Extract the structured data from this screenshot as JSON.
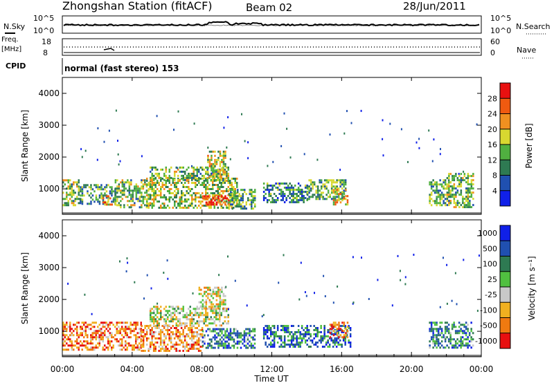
{
  "header": {
    "station": "Zhongshan Station (fitACF)",
    "beam": "Beam 02",
    "date": "28/Jun/2011"
  },
  "noise_panel": {
    "left_label": "N.Sky",
    "right_label": "N.Search",
    "y_tick_top": "10^5",
    "y_tick_bottom": "10^0"
  },
  "freq_panel": {
    "left_label_1": "Freq.",
    "left_label_2": "[MHz]",
    "right_label": "Nave",
    "left_tick_top": "18",
    "left_tick_bottom": "8",
    "right_tick_top": "60",
    "right_tick_bottom": "0"
  },
  "cpid": {
    "label": "CPID",
    "mode_text": "normal (fast stereo) 153"
  },
  "chart_data": [
    {
      "type": "heatmap",
      "panel": "power",
      "ylabel": "Slant Range [km]",
      "ylim": [
        200,
        4500
      ],
      "y_ticks": [
        "1000",
        "2000",
        "3000",
        "4000"
      ],
      "colorbar_label": "Power [dB]",
      "colorbar_ticks": [
        "4",
        "8",
        "12",
        "16",
        "20",
        "24",
        "28"
      ],
      "colorbar_colors": [
        "#1020e8",
        "#2050b0",
        "#2e7a52",
        "#50b040",
        "#d8d830",
        "#f09020",
        "#f05a10",
        "#e81010"
      ],
      "regions": [
        {
          "t": [
            0.0,
            1.0
          ],
          "r": [
            500,
            1300
          ],
          "level": 0.45
        },
        {
          "t": [
            1.0,
            3.0
          ],
          "r": [
            500,
            1150
          ],
          "level": 0.35
        },
        {
          "t": [
            2.2,
            3.0
          ],
          "r": [
            500,
            800
          ],
          "level": 0.7
        },
        {
          "t": [
            3.0,
            5.0
          ],
          "r": [
            400,
            1300
          ],
          "level": 0.45
        },
        {
          "t": [
            4.8,
            10.0
          ],
          "r": [
            400,
            1350
          ],
          "level": 0.5
        },
        {
          "t": [
            5.0,
            9.5
          ],
          "r": [
            1300,
            1700
          ],
          "level": 0.45
        },
        {
          "t": [
            8.0,
            9.5
          ],
          "r": [
            500,
            800
          ],
          "level": 0.85
        },
        {
          "t": [
            8.3,
            9.3
          ],
          "r": [
            1400,
            2200
          ],
          "level": 0.55
        },
        {
          "t": [
            9.5,
            11.0
          ],
          "r": [
            350,
            1000
          ],
          "level": 0.4
        },
        {
          "t": [
            11.5,
            14.0
          ],
          "r": [
            600,
            1200
          ],
          "level": 0.3
        },
        {
          "t": [
            14.0,
            16.2
          ],
          "r": [
            700,
            1300
          ],
          "level": 0.4
        },
        {
          "t": [
            15.5,
            16.3
          ],
          "r": [
            500,
            1000
          ],
          "level": 0.65
        },
        {
          "t": [
            21.0,
            22.2
          ],
          "r": [
            500,
            1300
          ],
          "level": 0.4
        },
        {
          "t": [
            22.0,
            23.5
          ],
          "r": [
            400,
            1500
          ],
          "level": 0.45
        }
      ]
    },
    {
      "type": "heatmap",
      "panel": "velocity",
      "ylabel": "Slant Range [km]",
      "ylim": [
        200,
        4500
      ],
      "y_ticks": [
        "1000",
        "2000",
        "3000",
        "4000"
      ],
      "colorbar_label": "Velocity [m s⁻¹]",
      "colorbar_ticks": [
        "1000",
        "500",
        "100",
        "25",
        "-25",
        "-100",
        "-500",
        "-1000"
      ],
      "colorbar_colors": [
        "#1020e8",
        "#2050b0",
        "#2e7a52",
        "#50c040",
        "#c8c8c8",
        "#f0b020",
        "#f07a10",
        "#e81010"
      ],
      "regions": [
        {
          "t": [
            0.0,
            4.5
          ],
          "r": [
            400,
            1300
          ],
          "level": 0.8
        },
        {
          "t": [
            4.5,
            8.0
          ],
          "r": [
            400,
            1200
          ],
          "level": 0.75
        },
        {
          "t": [
            5.0,
            9.5
          ],
          "r": [
            1200,
            1800
          ],
          "level": 0.55
        },
        {
          "t": [
            7.8,
            9.3
          ],
          "r": [
            1700,
            2400
          ],
          "level": 0.6
        },
        {
          "t": [
            8.0,
            11.0
          ],
          "r": [
            500,
            1100
          ],
          "level": 0.3
        },
        {
          "t": [
            11.5,
            16.5
          ],
          "r": [
            500,
            1200
          ],
          "level": 0.25
        },
        {
          "t": [
            15.3,
            16.3
          ],
          "r": [
            800,
            1300
          ],
          "level": 0.8
        },
        {
          "t": [
            21.0,
            23.5
          ],
          "r": [
            500,
            1300
          ],
          "level": 0.3
        }
      ]
    }
  ],
  "x_axis": {
    "label": "Time UT",
    "range_hours": [
      0,
      24
    ],
    "ticks": [
      "00:00",
      "04:00",
      "08:00",
      "12:00",
      "16:00",
      "20:00",
      "00:00"
    ]
  }
}
